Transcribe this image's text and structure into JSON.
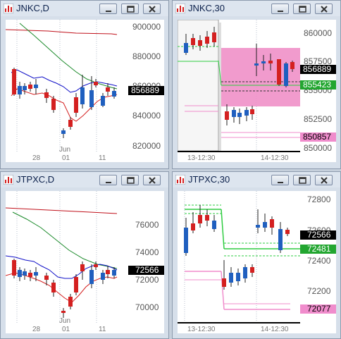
{
  "windows": [
    {
      "title": "JNKC,D",
      "y_ticks": [
        "900000",
        "880000",
        "860000",
        "840000",
        "820000"
      ],
      "x_labels": [
        "28",
        "01",
        "11"
      ],
      "x_sub_label": "Jun",
      "price_tags": [
        {
          "text": "856889",
          "bg": "#000000",
          "fg": "#ffffff"
        }
      ]
    },
    {
      "title": "JNKC,30",
      "y_ticks": [
        "860000",
        "857500",
        "855000",
        "852500",
        "850000"
      ],
      "x_labels": [
        "13-12:30",
        "14-12:30"
      ],
      "price_tags": [
        {
          "text": "856889",
          "bg": "#000000",
          "fg": "#ffffff"
        },
        {
          "text": "855423",
          "bg": "#22a630",
          "fg": "#ffffff"
        },
        {
          "text": "850857",
          "bg": "#f08ccc",
          "fg": "#000000"
        }
      ]
    },
    {
      "title": "JTPXC,D",
      "y_ticks": [
        "76000",
        "74000",
        "72000",
        "70000"
      ],
      "x_labels": [
        "28",
        "01",
        "11"
      ],
      "x_sub_label": "Jun",
      "price_tags": [
        {
          "text": "72566",
          "bg": "#000000",
          "fg": "#ffffff"
        }
      ]
    },
    {
      "title": "JTPXC,30",
      "y_ticks": [
        "72800",
        "72600",
        "72400",
        "72200"
      ],
      "x_labels": [
        "13-12:30",
        "14-12:30"
      ],
      "price_tags": [
        {
          "text": "72566",
          "bg": "#000000",
          "fg": "#ffffff"
        },
        {
          "text": "72481",
          "bg": "#22a630",
          "fg": "#ffffff"
        },
        {
          "text": "72077",
          "bg": "#f08ccc",
          "fg": "#000000"
        }
      ]
    }
  ],
  "colors": {
    "up": "#1f5fbf",
    "down": "#d42020",
    "ma_long": "#c0101a",
    "ma_mid": "#1b8a2a",
    "band_blue": "#1010c8",
    "zone_fill": "#f090c8",
    "level_green": "#2ecc40",
    "level_pink": "#f08ccc"
  }
}
